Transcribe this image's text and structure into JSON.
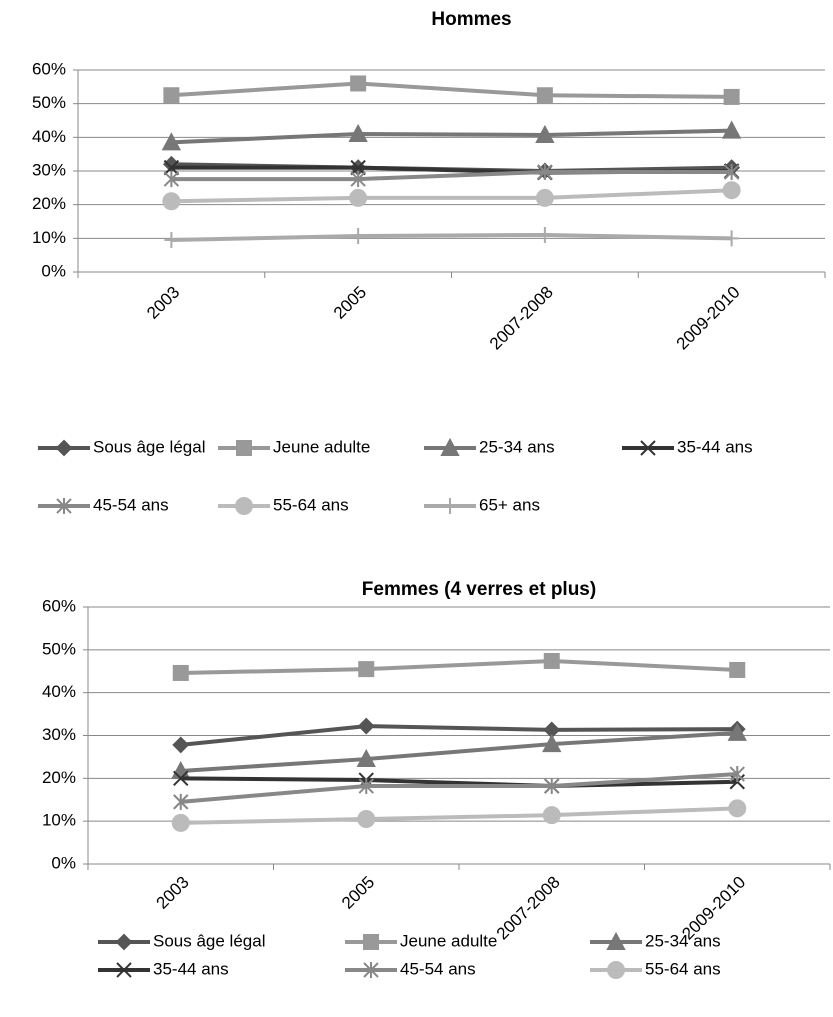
{
  "chart_data": [
    {
      "type": "line",
      "title": "Hommes",
      "categories": [
        "2003",
        "2005",
        "2007-2008",
        "2009-2010"
      ],
      "ylim": [
        0,
        60
      ],
      "yticks": [
        {
          "value": 0,
          "label": "0%"
        },
        {
          "value": 10,
          "label": "10%"
        },
        {
          "value": 20,
          "label": "20%"
        },
        {
          "value": 30,
          "label": "30%"
        },
        {
          "value": 40,
          "label": "40%"
        },
        {
          "value": 50,
          "label": "50%"
        },
        {
          "value": 60,
          "label": "60%"
        }
      ],
      "grid": true,
      "legend": "bottom",
      "series": [
        {
          "name": "Sous âge légal",
          "color": "#555555",
          "marker": "diamond",
          "values": [
            32,
            31,
            30,
            31
          ]
        },
        {
          "name": "Jeune adulte",
          "color": "#999999",
          "marker": "square",
          "values": [
            52.5,
            56,
            52.5,
            52
          ]
        },
        {
          "name": "25-34 ans",
          "color": "#777777",
          "marker": "triangle",
          "values": [
            38.5,
            41,
            40.7,
            42
          ]
        },
        {
          "name": "35-44 ans",
          "color": "#333333",
          "marker": "x",
          "values": [
            31,
            31,
            29.5,
            30
          ]
        },
        {
          "name": "45-54 ans",
          "color": "#888888",
          "marker": "asterisk",
          "values": [
            27.6,
            27.6,
            29.7,
            29.7
          ]
        },
        {
          "name": "55-64 ans",
          "color": "#bbbbbb",
          "marker": "circle",
          "values": [
            21,
            22,
            22,
            24.3
          ]
        },
        {
          "name": "65+ ans",
          "color": "#aaaaaa",
          "marker": "plus",
          "values": [
            9.5,
            10.7,
            11,
            10
          ]
        }
      ]
    },
    {
      "type": "line",
      "title": "Femmes (4 verres et plus)",
      "categories": [
        "2003",
        "2005",
        "2007-2008",
        "2009-2010"
      ],
      "ylim": [
        0,
        60
      ],
      "yticks": [
        {
          "value": 0,
          "label": "0%"
        },
        {
          "value": 10,
          "label": "10%"
        },
        {
          "value": 20,
          "label": "20%"
        },
        {
          "value": 30,
          "label": "30%"
        },
        {
          "value": 40,
          "label": "40%"
        },
        {
          "value": 50,
          "label": "50%"
        },
        {
          "value": 60,
          "label": "60%"
        }
      ],
      "grid": true,
      "legend": "bottom",
      "series": [
        {
          "name": "Sous âge légal",
          "color": "#555555",
          "marker": "diamond",
          "values": [
            27.8,
            32.2,
            31.3,
            31.5
          ]
        },
        {
          "name": "Jeune adulte",
          "color": "#999999",
          "marker": "square",
          "values": [
            44.6,
            45.5,
            47.4,
            45.3
          ]
        },
        {
          "name": "25-34 ans",
          "color": "#777777",
          "marker": "triangle",
          "values": [
            21.7,
            24.5,
            28,
            30.6
          ]
        },
        {
          "name": "35-44 ans",
          "color": "#333333",
          "marker": "x",
          "values": [
            20,
            19.6,
            18.2,
            19.2
          ]
        },
        {
          "name": "45-54 ans",
          "color": "#888888",
          "marker": "asterisk",
          "values": [
            14.5,
            18.2,
            18.2,
            21
          ]
        },
        {
          "name": "55-64 ans",
          "color": "#bbbbbb",
          "marker": "circle",
          "values": [
            9.6,
            10.5,
            11.4,
            13
          ]
        }
      ]
    }
  ]
}
